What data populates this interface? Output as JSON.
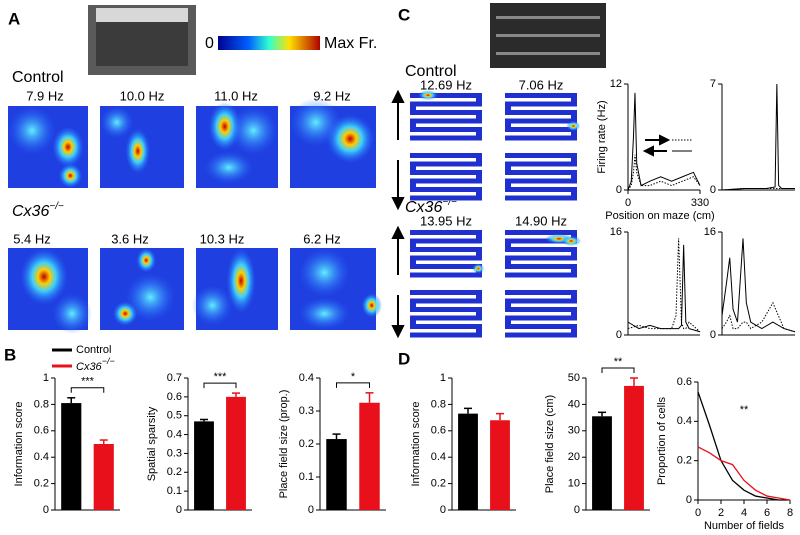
{
  "panels": [
    "A",
    "B",
    "C",
    "D"
  ],
  "colorbar": {
    "min_label": "0",
    "max_label": "Max Fr."
  },
  "legend": [
    {
      "name": "Control",
      "color": "#000000"
    },
    {
      "name": "Cx36",
      "sup": "−/−",
      "color": "#e8101a"
    }
  ],
  "a_rates": {
    "control": [
      "7.9 Hz",
      "10.0 Hz",
      "11.0 Hz",
      "9.2 Hz"
    ],
    "ko": [
      "5.4 Hz",
      "3.6 Hz",
      "10.3 Hz",
      "6.2 Hz"
    ]
  },
  "c_rates": {
    "control": [
      "12.69 Hz",
      "7.06 Hz"
    ],
    "ko": [
      "13.95 Hz",
      "14.90 Hz"
    ]
  },
  "chart_data": [
    {
      "type": "bar",
      "ylabel": "Information score",
      "values": [
        0.81,
        0.5
      ],
      "errors": [
        0.04,
        0.03
      ],
      "colors": [
        "#000000",
        "#e8101a"
      ],
      "ylim": [
        0,
        1
      ],
      "yticks": [
        0,
        0.2,
        0.4,
        0.6,
        0.8,
        1
      ],
      "annotation": "***"
    },
    {
      "type": "bar",
      "ylabel": "Spatial sparsity",
      "values": [
        0.47,
        0.6
      ],
      "errors": [
        0.01,
        0.02
      ],
      "colors": [
        "#000000",
        "#e8101a"
      ],
      "ylim": [
        0,
        0.7
      ],
      "yticks": [
        0,
        0.1,
        0.2,
        0.3,
        0.4,
        0.5,
        0.6,
        0.7
      ],
      "annotation": "***"
    },
    {
      "type": "bar",
      "ylabel": "Place field size (prop.)",
      "values": [
        0.215,
        0.325
      ],
      "errors": [
        0.015,
        0.03
      ],
      "colors": [
        "#000000",
        "#e8101a"
      ],
      "ylim": [
        0,
        0.4
      ],
      "yticks": [
        0,
        0.1,
        0.2,
        0.3,
        0.4
      ],
      "annotation": "*"
    },
    {
      "type": "bar",
      "ylabel": "Information score",
      "values": [
        0.73,
        0.68
      ],
      "errors": [
        0.04,
        0.05
      ],
      "colors": [
        "#000000",
        "#e8101a"
      ],
      "ylim": [
        0,
        1
      ],
      "yticks": [
        0,
        0.2,
        0.4,
        0.6,
        0.8,
        1
      ]
    },
    {
      "type": "bar",
      "ylabel": "Place field size (cm)",
      "values": [
        35.5,
        47
      ],
      "errors": [
        1.5,
        3
      ],
      "colors": [
        "#000000",
        "#e8101a"
      ],
      "ylim": [
        0,
        50
      ],
      "yticks": [
        0,
        10,
        20,
        30,
        40,
        50
      ],
      "annotation": "**"
    },
    {
      "type": "line",
      "ylabel": "Proportion of cells",
      "xlabel": "Number of fields",
      "x": [
        0,
        1,
        2,
        3,
        4,
        5,
        6,
        7,
        8
      ],
      "series": [
        {
          "color": "#000000",
          "values": [
            0.55,
            0.38,
            0.2,
            0.1,
            0.05,
            0.02,
            0.01,
            0,
            0
          ]
        },
        {
          "color": "#e8101a",
          "values": [
            0.27,
            0.24,
            0.2,
            0.18,
            0.1,
            0.05,
            0.02,
            0.01,
            0
          ]
        }
      ],
      "xlim": [
        0,
        8
      ],
      "xticks": [
        0,
        2,
        4,
        6,
        8
      ],
      "ylim": [
        0,
        0.6
      ],
      "yticks": [
        0,
        0.2,
        0.4,
        0.6
      ],
      "annotation": "**"
    },
    {
      "type": "line",
      "ylabel": "Firing rate (Hz)",
      "xlabel": "Position on maze (cm)",
      "x": [
        0,
        15,
        25,
        32,
        40,
        60,
        100,
        150,
        200,
        250,
        300,
        330
      ],
      "series": [
        {
          "color": "#000000",
          "style": "solid",
          "values": [
            0,
            1,
            6,
            11,
            3,
            0.5,
            1,
            1.5,
            1,
            1.5,
            2,
            0.5
          ]
        },
        {
          "color": "#000000",
          "style": "dotted",
          "values": [
            0,
            0.5,
            2,
            4,
            2,
            0.5,
            0.5,
            1,
            0.5,
            1,
            1.5,
            0.5
          ]
        }
      ],
      "xlim": [
        0,
        330
      ],
      "xticks": [
        0,
        330
      ],
      "ylim": [
        0,
        12
      ],
      "yticks": [
        0,
        12
      ]
    },
    {
      "type": "line",
      "x": [
        0,
        100,
        200,
        240,
        248,
        256,
        270,
        330
      ],
      "series": [
        {
          "color": "#000000",
          "style": "solid",
          "values": [
            0,
            0.1,
            0.1,
            0.2,
            7,
            0.3,
            0.1,
            0.1
          ]
        },
        {
          "color": "#000000",
          "style": "dotted",
          "values": [
            0,
            0.1,
            0.1,
            0.1,
            0.1,
            0.1,
            0.1,
            0.1
          ]
        }
      ],
      "xlim": [
        0,
        330
      ],
      "ylim": [
        0,
        7
      ],
      "yticks": [
        0,
        7
      ]
    },
    {
      "type": "line",
      "x": [
        0,
        50,
        100,
        150,
        200,
        220,
        232,
        245,
        255,
        265,
        280,
        330
      ],
      "series": [
        {
          "color": "#000000",
          "style": "solid",
          "values": [
            2,
            1,
            1.5,
            1,
            1,
            1,
            1,
            1.5,
            14,
            2,
            1,
            0.5
          ]
        },
        {
          "color": "#000000",
          "style": "dotted",
          "values": [
            1,
            1.5,
            1,
            1,
            1,
            3,
            15,
            2,
            1,
            1,
            2,
            0.5
          ]
        }
      ],
      "xlim": [
        0,
        330
      ],
      "ylim": [
        0,
        16
      ],
      "yticks": [
        0,
        16
      ]
    },
    {
      "type": "line",
      "x": [
        0,
        20,
        35,
        50,
        70,
        95,
        110,
        130,
        180,
        230,
        280,
        330
      ],
      "series": [
        {
          "color": "#000000",
          "style": "solid",
          "values": [
            3,
            8,
            12,
            4,
            2,
            15,
            5,
            2,
            1,
            2,
            1,
            0.5
          ]
        },
        {
          "color": "#000000",
          "style": "dotted",
          "values": [
            1,
            2,
            3,
            1,
            1,
            2,
            2,
            1,
            2,
            5,
            1,
            0.5
          ]
        }
      ],
      "xlim": [
        0,
        330
      ],
      "ylim": [
        0,
        16
      ],
      "yticks": [
        0,
        16
      ]
    }
  ]
}
